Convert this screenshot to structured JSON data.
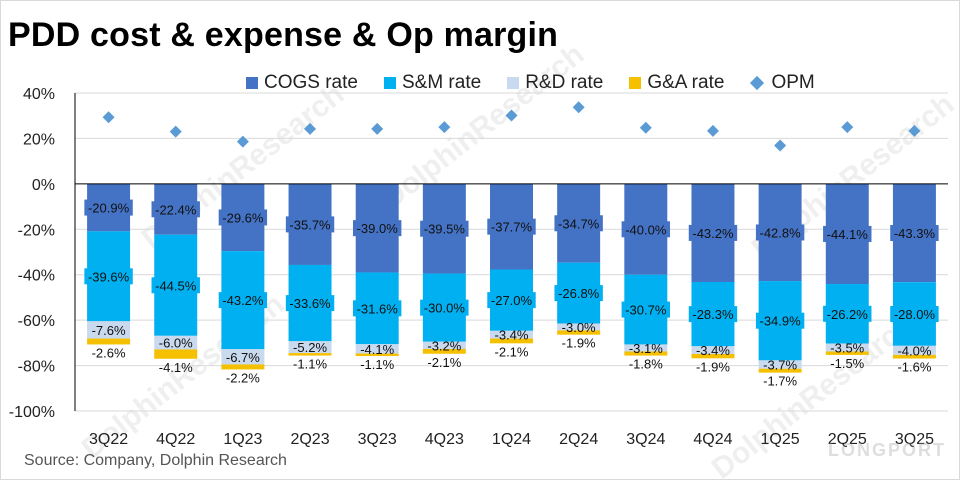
{
  "title": "PDD cost & expense & Op margin",
  "source": "Source: Company,  Dolphin Research",
  "watermark": "DolphinResearch",
  "brand": "LONGPORT",
  "colors": {
    "cogs": "#4472C4",
    "sm": "#00B0F0",
    "rd": "#C9D9EE",
    "ga": "#F5C000",
    "opm": "#5B9BD5",
    "grid": "#d9d9d9",
    "axis": "#000000"
  },
  "chart_data": {
    "type": "bar",
    "stacked": true,
    "title": "PDD cost & expense & Op margin",
    "categories": [
      "3Q22",
      "4Q22",
      "1Q23",
      "2Q23",
      "3Q23",
      "4Q23",
      "1Q24",
      "2Q24",
      "3Q24",
      "4Q24",
      "1Q25",
      "2Q25",
      "3Q25"
    ],
    "ylim": [
      -100,
      40
    ],
    "yticks": [
      40,
      20,
      0,
      -20,
      -40,
      -60,
      -80,
      -100
    ],
    "ytick_labels": [
      "40%",
      "20%",
      "0%",
      "-20%",
      "-40%",
      "-60%",
      "-80%",
      "-100%"
    ],
    "grid": true,
    "legend": "top",
    "series": [
      {
        "name": "COGS rate",
        "kind": "bar",
        "color_key": "cogs",
        "values": [
          -20.9,
          -22.4,
          -29.6,
          -35.7,
          -39.0,
          -39.5,
          -37.7,
          -34.7,
          -40.0,
          -43.2,
          -42.8,
          -44.1,
          -43.3
        ],
        "labels": [
          "-20.9%",
          "-22.4%",
          "-29.6%",
          "-35.7%",
          "-39.0%",
          "-39.5%",
          "-37.7%",
          "-34.7%",
          "-40.0%",
          "-43.2%",
          "-42.8%",
          "-44.1%",
          "-43.3%"
        ]
      },
      {
        "name": "S&M rate",
        "kind": "bar",
        "color_key": "sm",
        "values": [
          -39.6,
          -44.5,
          -43.2,
          -33.6,
          -31.6,
          -30.0,
          -27.0,
          -26.8,
          -30.7,
          -28.3,
          -34.9,
          -26.2,
          -28.0
        ],
        "labels": [
          "-39.6%",
          "-44.5%",
          "-43.2%",
          "-33.6%",
          "-31.6%",
          "-30.0%",
          "-27.0%",
          "-26.8%",
          "-30.7%",
          "-28.3%",
          "-34.9%",
          "-26.2%",
          "-28.0%"
        ]
      },
      {
        "name": "R&D rate",
        "kind": "bar",
        "color_key": "rd",
        "values": [
          -7.6,
          -6.0,
          -6.7,
          -5.2,
          -4.1,
          -3.2,
          -3.4,
          -3.0,
          -3.1,
          -3.4,
          -3.7,
          -3.5,
          -4.0
        ],
        "labels": [
          "-7.6%",
          "-6.0%",
          "-6.7%",
          "-5.2%",
          "-4.1%",
          "-3.2%",
          "-3.4%",
          "-3.0%",
          "-3.1%",
          "-3.4%",
          "-3.7%",
          "-3.5%",
          "-4.0%"
        ]
      },
      {
        "name": "G&A rate",
        "kind": "bar",
        "color_key": "ga",
        "values": [
          -2.6,
          -4.1,
          -2.2,
          -1.1,
          -1.1,
          -2.1,
          -2.1,
          -1.9,
          -1.8,
          -1.9,
          -1.7,
          -1.5,
          -1.6
        ],
        "labels": [
          "-2.6%",
          "-4.1%",
          "-2.2%",
          "-1.1%",
          "-1.1%",
          "-2.1%",
          "-2.1%",
          "-1.9%",
          "-1.8%",
          "-1.9%",
          "-1.7%",
          "-1.5%",
          "-1.6%"
        ]
      },
      {
        "name": "OPM",
        "kind": "scatter",
        "marker": "diamond",
        "color_key": "opm",
        "values": [
          29.3,
          23.0,
          18.6,
          24.2,
          24.2,
          25.0,
          30.1,
          33.7,
          24.7,
          23.3,
          16.9,
          25.0,
          23.3
        ]
      }
    ]
  }
}
